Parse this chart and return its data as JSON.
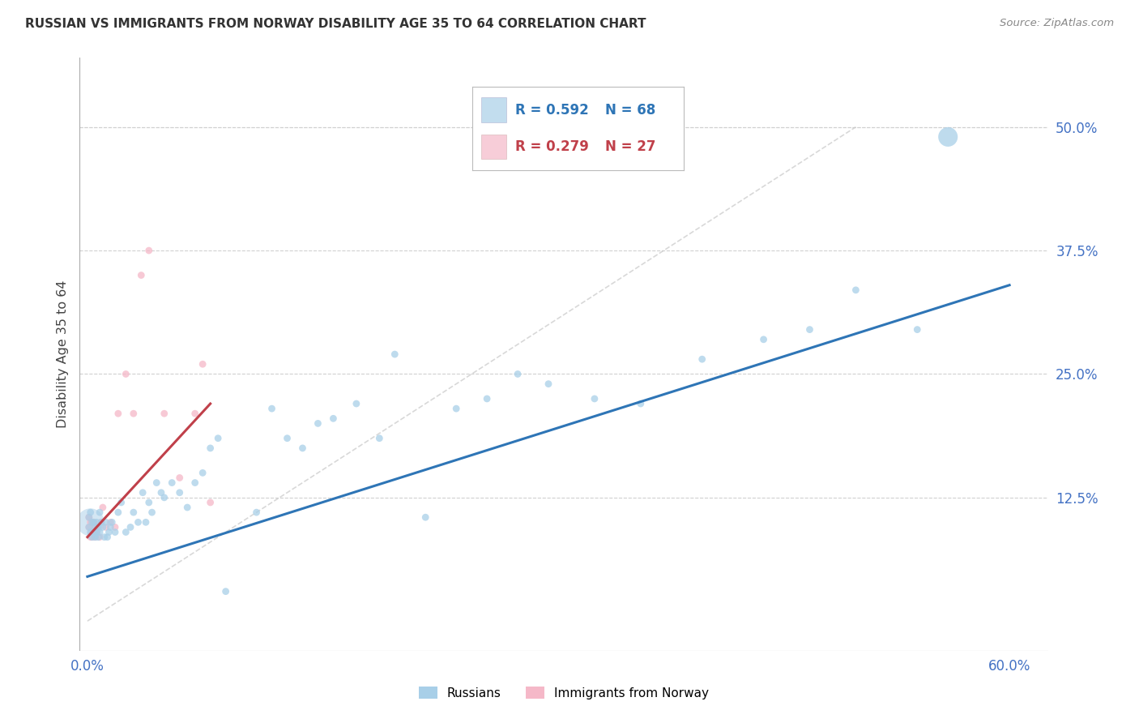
{
  "title": "RUSSIAN VS IMMIGRANTS FROM NORWAY DISABILITY AGE 35 TO 64 CORRELATION CHART",
  "source": "Source: ZipAtlas.com",
  "ylabel": "Disability Age 35 to 64",
  "xlim": [
    -0.005,
    0.625
  ],
  "ylim": [
    -0.03,
    0.57
  ],
  "xticks": [
    0.0,
    0.1,
    0.2,
    0.3,
    0.4,
    0.5,
    0.6
  ],
  "xticklabels": [
    "0.0%",
    "",
    "",
    "",
    "",
    "",
    "60.0%"
  ],
  "yticks_right": [
    0.125,
    0.25,
    0.375,
    0.5
  ],
  "ytick_right_labels": [
    "12.5%",
    "25.0%",
    "37.5%",
    "50.0%"
  ],
  "blue_color": "#a8cfe8",
  "pink_color": "#f5b8c8",
  "line_blue_color": "#2e75b6",
  "line_pink_color": "#c0404a",
  "axis_tick_color": "#4472c4",
  "background_color": "#ffffff",
  "grid_color": "#d0d0d0",
  "diag_color": "#c8c8c8",
  "russians_x": [
    0.001,
    0.001,
    0.002,
    0.002,
    0.003,
    0.003,
    0.004,
    0.004,
    0.005,
    0.005,
    0.006,
    0.006,
    0.007,
    0.007,
    0.008,
    0.008,
    0.009,
    0.01,
    0.011,
    0.012,
    0.013,
    0.014,
    0.015,
    0.016,
    0.018,
    0.02,
    0.022,
    0.025,
    0.028,
    0.03,
    0.033,
    0.036,
    0.038,
    0.04,
    0.042,
    0.045,
    0.048,
    0.05,
    0.055,
    0.06,
    0.065,
    0.07,
    0.075,
    0.08,
    0.085,
    0.09,
    0.11,
    0.12,
    0.13,
    0.14,
    0.15,
    0.16,
    0.175,
    0.19,
    0.2,
    0.22,
    0.24,
    0.26,
    0.28,
    0.3,
    0.33,
    0.36,
    0.4,
    0.44,
    0.47,
    0.5,
    0.54,
    0.56
  ],
  "russians_y": [
    0.095,
    0.105,
    0.09,
    0.11,
    0.1,
    0.085,
    0.09,
    0.1,
    0.095,
    0.085,
    0.1,
    0.09,
    0.095,
    0.085,
    0.09,
    0.11,
    0.1,
    0.095,
    0.085,
    0.1,
    0.085,
    0.09,
    0.095,
    0.1,
    0.09,
    0.11,
    0.12,
    0.09,
    0.095,
    0.11,
    0.1,
    0.13,
    0.1,
    0.12,
    0.11,
    0.14,
    0.13,
    0.125,
    0.14,
    0.13,
    0.115,
    0.14,
    0.15,
    0.175,
    0.185,
    0.03,
    0.11,
    0.215,
    0.185,
    0.175,
    0.2,
    0.205,
    0.22,
    0.185,
    0.27,
    0.105,
    0.215,
    0.225,
    0.25,
    0.24,
    0.225,
    0.22,
    0.265,
    0.285,
    0.295,
    0.335,
    0.295,
    0.49
  ],
  "russians_size": [
    40,
    40,
    40,
    40,
    40,
    40,
    40,
    40,
    40,
    40,
    40,
    40,
    40,
    40,
    40,
    40,
    40,
    40,
    40,
    40,
    40,
    40,
    40,
    40,
    40,
    40,
    40,
    40,
    40,
    40,
    40,
    40,
    40,
    40,
    40,
    40,
    40,
    40,
    40,
    40,
    40,
    40,
    40,
    40,
    40,
    40,
    40,
    40,
    40,
    40,
    40,
    40,
    40,
    40,
    40,
    40,
    40,
    40,
    40,
    40,
    40,
    40,
    40,
    40,
    40,
    40,
    40,
    300
  ],
  "norway_x": [
    0.001,
    0.001,
    0.002,
    0.002,
    0.003,
    0.003,
    0.004,
    0.005,
    0.005,
    0.006,
    0.007,
    0.008,
    0.009,
    0.01,
    0.012,
    0.015,
    0.018,
    0.02,
    0.025,
    0.03,
    0.035,
    0.04,
    0.05,
    0.06,
    0.07,
    0.075,
    0.08
  ],
  "norway_y": [
    0.095,
    0.105,
    0.085,
    0.1,
    0.09,
    0.085,
    0.1,
    0.095,
    0.085,
    0.09,
    0.095,
    0.085,
    0.1,
    0.115,
    0.095,
    0.1,
    0.095,
    0.21,
    0.25,
    0.21,
    0.35,
    0.375,
    0.21,
    0.145,
    0.21,
    0.26,
    0.12
  ],
  "norway_size": [
    40,
    40,
    40,
    40,
    40,
    40,
    40,
    40,
    40,
    40,
    40,
    40,
    40,
    40,
    40,
    40,
    40,
    40,
    40,
    40,
    40,
    40,
    40,
    40,
    40,
    40,
    40
  ],
  "blue_line_x": [
    0.0,
    0.6
  ],
  "blue_line_y": [
    0.045,
    0.34
  ],
  "pink_line_x": [
    0.0,
    0.08
  ],
  "pink_line_y": [
    0.085,
    0.22
  ],
  "diag_line_x": [
    0.0,
    0.5
  ],
  "diag_line_y": [
    0.0,
    0.5
  ]
}
